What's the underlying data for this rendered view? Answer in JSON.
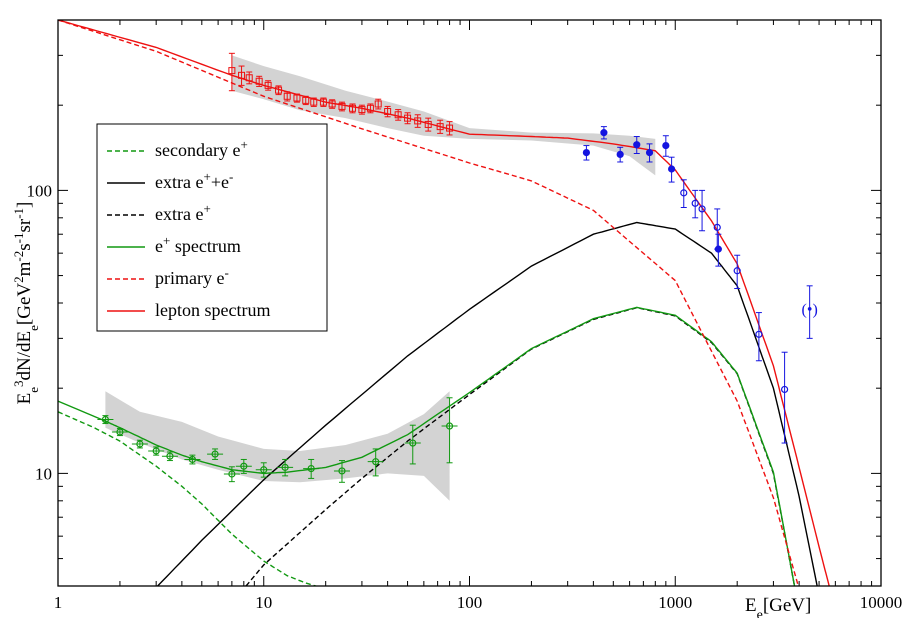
{
  "chart_data": {
    "type": "line",
    "title": "",
    "xlabel": {
      "base": "E",
      "sub": "e",
      "unit": "[GeV]"
    },
    "ylabel": {
      "text": "E_e^3 dN/dE_e [GeV^2 m^-2 s^-1 sr^-1]"
    },
    "xscale": "log",
    "yscale": "log",
    "xlim": [
      1,
      10000
    ],
    "ylim": [
      4,
      400
    ],
    "grid": false,
    "legend_position": "left-middle",
    "x_ticks": [
      "1",
      "10",
      "100",
      "1000",
      "10000"
    ],
    "y_ticks": [
      "10",
      "100"
    ],
    "colors": {
      "green": "#119911",
      "red": "#ee1111",
      "black": "#000000",
      "blue": "#1515e0",
      "band": "#d3d3d3"
    },
    "legend": [
      {
        "label": "secondary e",
        "sup": "+",
        "tail": "",
        "color": "#119911",
        "dashed": true
      },
      {
        "label": "extra e",
        "sup": "+",
        "tail": "+e",
        "sup2": "-",
        "color": "#000000",
        "dashed": false
      },
      {
        "label": "extra e",
        "sup": "+",
        "tail": "",
        "color": "#000000",
        "dashed": true
      },
      {
        "label": "e",
        "sup": "+",
        "tail": " spectrum",
        "color": "#119911",
        "dashed": false
      },
      {
        "label": "primary e",
        "sup": "-",
        "tail": "",
        "color": "#ee1111",
        "dashed": true
      },
      {
        "label": "lepton spectrum",
        "sup": "",
        "tail": "",
        "color": "#ee1111",
        "dashed": false
      }
    ],
    "series": [
      {
        "name": "secondary e+",
        "color": "#119911",
        "dashed": true,
        "x": [
          1,
          1.5,
          2,
          3,
          4,
          5,
          7,
          10,
          13,
          16,
          20
        ],
        "y": [
          16.5,
          14.5,
          13,
          10.6,
          9,
          7.8,
          6.1,
          4.9,
          4.35,
          4.1,
          3.9
        ]
      },
      {
        "name": "extra e+ + e-",
        "color": "#000000",
        "dashed": false,
        "x": [
          3.05,
          5,
          10,
          20,
          50,
          100,
          200,
          400,
          650,
          1000,
          1500,
          2000,
          3000,
          4000,
          5000
        ],
        "y": [
          4.0,
          5.8,
          9.5,
          14.8,
          26,
          38,
          54,
          70,
          77,
          73,
          60,
          46,
          20,
          8.3,
          3.7
        ]
      },
      {
        "name": "extra e+",
        "color": "#000000",
        "dashed": true,
        "x": [
          8.2,
          10,
          20,
          30,
          50,
          100,
          200,
          400,
          650,
          1000,
          1500,
          2000,
          3000,
          3800
        ],
        "y": [
          4.0,
          4.75,
          7.45,
          9.6,
          13,
          19,
          27.5,
          35,
          38.5,
          36,
          29,
          22.5,
          10,
          4.0
        ]
      },
      {
        "name": "e+ spectrum",
        "color": "#119911",
        "dashed": false,
        "x": [
          1,
          1.7,
          2,
          3,
          4,
          5,
          7,
          10,
          13,
          20,
          30,
          50,
          100,
          200,
          400,
          650,
          1000,
          1500,
          2000,
          3000,
          3800
        ],
        "y": [
          18,
          15.3,
          14.5,
          12.6,
          11.6,
          11.0,
          10.3,
          10.0,
          10.1,
          10.5,
          11.4,
          13.7,
          19.3,
          27.6,
          35.2,
          38.6,
          36.2,
          29.2,
          22.6,
          10.1,
          4.0
        ]
      },
      {
        "name": "primary e-",
        "color": "#ee1111",
        "dashed": true,
        "x": [
          1,
          3,
          10,
          30,
          100,
          200,
          400,
          1000,
          2000,
          3000,
          4000
        ],
        "y": [
          400,
          310,
          215,
          165,
          125,
          108,
          85,
          48,
          18,
          8.2,
          3.9
        ]
      },
      {
        "name": "lepton spectrum",
        "color": "#ee1111",
        "dashed": false,
        "x": [
          1,
          3,
          7,
          10,
          20,
          30,
          50,
          100,
          200,
          300,
          500,
          800,
          1000,
          1500,
          2000,
          3000,
          4000,
          5000,
          5600
        ],
        "y": [
          400,
          320,
          255,
          235,
          205,
          195,
          180,
          158,
          155,
          153,
          146,
          138,
          118,
          78,
          55,
          24,
          10.5,
          5.5,
          4.0
        ]
      }
    ],
    "bands": [
      {
        "name": "positron band",
        "color": "#d3d3d3",
        "x": [
          1.7,
          2.5,
          4,
          6,
          10,
          15,
          25,
          40,
          60,
          80
        ],
        "ylow": [
          14.5,
          12.8,
          11.2,
          10.3,
          9.4,
          9.3,
          9.6,
          10.0,
          9.8,
          8.0
        ],
        "yhigh": [
          19.5,
          16.5,
          15.2,
          13.5,
          12.2,
          12.0,
          12.6,
          13.8,
          16.2,
          19.5
        ]
      },
      {
        "name": "lepton band",
        "color": "#d3d3d3",
        "x": [
          7,
          10,
          15,
          25,
          40,
          60,
          100,
          200,
          400,
          600,
          800
        ],
        "ylow": [
          225,
          210,
          192,
          180,
          166,
          156,
          152,
          150,
          144,
          132,
          113
        ],
        "yhigh": [
          300,
          275,
          253,
          225,
          206,
          190,
          166,
          160,
          159,
          156,
          152
        ]
      }
    ],
    "markers": [
      {
        "name": "positron data",
        "color": "#119911",
        "shape": "circle",
        "points": [
          {
            "x": 1.7,
            "y": 15.5,
            "yerr": 0.5
          },
          {
            "x": 2.0,
            "y": 14.0,
            "yerr": 0.4
          },
          {
            "x": 2.5,
            "y": 12.7,
            "yerr": 0.4
          },
          {
            "x": 3.0,
            "y": 12.0,
            "yerr": 0.4
          },
          {
            "x": 3.5,
            "y": 11.5,
            "yerr": 0.4
          },
          {
            "x": 4.5,
            "y": 11.2,
            "yerr": 0.4
          },
          {
            "x": 5.8,
            "y": 11.7,
            "yerr": 0.5
          },
          {
            "x": 7.0,
            "y": 9.95,
            "yerr": 0.6
          },
          {
            "x": 8.0,
            "y": 10.6,
            "yerr": 0.6
          },
          {
            "x": 10.0,
            "y": 10.3,
            "yerr": 0.6
          },
          {
            "x": 12.7,
            "y": 10.5,
            "yerr": 0.7
          },
          {
            "x": 17.0,
            "y": 10.4,
            "yerr": 0.8
          },
          {
            "x": 24.0,
            "y": 10.2,
            "yerr": 0.9
          },
          {
            "x": 35.0,
            "y": 11.0,
            "yerr": 1.2
          },
          {
            "x": 53.0,
            "y": 12.8,
            "yerr": 2.0
          },
          {
            "x": 80.0,
            "y": 14.7,
            "yerr": 3.8
          }
        ]
      },
      {
        "name": "lepton data",
        "color": "#ee1111",
        "shape": "square",
        "points": [
          {
            "x": 7.0,
            "y": 265,
            "yerr": 40
          },
          {
            "x": 7.8,
            "y": 255,
            "yerr": 20
          },
          {
            "x": 8.5,
            "y": 250,
            "yerr": 12
          },
          {
            "x": 9.5,
            "y": 243,
            "yerr": 10
          },
          {
            "x": 10.5,
            "y": 235,
            "yerr": 9
          },
          {
            "x": 11.8,
            "y": 226,
            "yerr": 8
          },
          {
            "x": 13.0,
            "y": 215,
            "yerr": 8
          },
          {
            "x": 14.5,
            "y": 212,
            "yerr": 7
          },
          {
            "x": 16.0,
            "y": 208,
            "yerr": 7
          },
          {
            "x": 17.5,
            "y": 205,
            "yerr": 7
          },
          {
            "x": 19.5,
            "y": 205,
            "yerr": 7
          },
          {
            "x": 21.5,
            "y": 202,
            "yerr": 7
          },
          {
            "x": 24.0,
            "y": 198,
            "yerr": 7
          },
          {
            "x": 27.0,
            "y": 195,
            "yerr": 7
          },
          {
            "x": 30.0,
            "y": 193,
            "yerr": 7
          },
          {
            "x": 33.0,
            "y": 195,
            "yerr": 7
          },
          {
            "x": 36.0,
            "y": 202,
            "yerr": 8
          },
          {
            "x": 40.0,
            "y": 190,
            "yerr": 8
          },
          {
            "x": 45.0,
            "y": 185,
            "yerr": 8
          },
          {
            "x": 50.0,
            "y": 180,
            "yerr": 8
          },
          {
            "x": 56.0,
            "y": 176,
            "yerr": 9
          },
          {
            "x": 63.0,
            "y": 171,
            "yerr": 9
          },
          {
            "x": 72.0,
            "y": 168,
            "yerr": 9
          },
          {
            "x": 80.0,
            "y": 166,
            "yerr": 9
          }
        ]
      },
      {
        "name": "hess data",
        "color": "#1515e0",
        "shape": "circle",
        "points": [
          {
            "x": 370,
            "y": 136,
            "yerr": 8
          },
          {
            "x": 450,
            "y": 160,
            "yerr": 8
          },
          {
            "x": 540,
            "y": 134,
            "yerr": 8
          },
          {
            "x": 650,
            "y": 145,
            "yerr": 10
          },
          {
            "x": 750,
            "y": 136,
            "yerr": 10
          },
          {
            "x": 900,
            "y": 144,
            "yerr": 12
          },
          {
            "x": 960,
            "y": 119,
            "yerr": 12
          },
          {
            "x": 1100,
            "y": 98,
            "yerr": 11
          },
          {
            "x": 1250,
            "y": 90,
            "yerr": 10
          },
          {
            "x": 1350,
            "y": 86,
            "yerr": 14
          },
          {
            "x": 1600,
            "y": 74,
            "yerr": 12
          },
          {
            "x": 1620,
            "y": 62,
            "yerr": 8
          },
          {
            "x": 2000,
            "y": 52,
            "yerr": 7
          },
          {
            "x": 2550,
            "y": 31,
            "yerr": 6
          },
          {
            "x": 3400,
            "y": 19.8,
            "yerr": 7
          },
          {
            "x": 4500,
            "y": 38,
            "yerr": 8,
            "bracket": "(•)"
          }
        ]
      }
    ]
  }
}
